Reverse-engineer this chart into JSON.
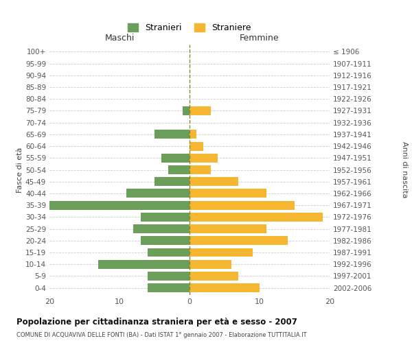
{
  "age_groups": [
    "0-4",
    "5-9",
    "10-14",
    "15-19",
    "20-24",
    "25-29",
    "30-34",
    "35-39",
    "40-44",
    "45-49",
    "50-54",
    "55-59",
    "60-64",
    "65-69",
    "70-74",
    "75-79",
    "80-84",
    "85-89",
    "90-94",
    "95-99",
    "100+"
  ],
  "birth_years": [
    "2002-2006",
    "1997-2001",
    "1992-1996",
    "1987-1991",
    "1982-1986",
    "1977-1981",
    "1972-1976",
    "1967-1971",
    "1962-1966",
    "1957-1961",
    "1952-1956",
    "1947-1951",
    "1942-1946",
    "1937-1941",
    "1932-1936",
    "1927-1931",
    "1922-1926",
    "1917-1921",
    "1912-1916",
    "1907-1911",
    "≤ 1906"
  ],
  "maschi": [
    6,
    6,
    13,
    6,
    7,
    8,
    7,
    20,
    9,
    5,
    3,
    4,
    0,
    5,
    0,
    1,
    0,
    0,
    0,
    0,
    0
  ],
  "femmine": [
    10,
    7,
    6,
    9,
    14,
    11,
    19,
    15,
    11,
    7,
    3,
    4,
    2,
    1,
    0,
    3,
    0,
    0,
    0,
    0,
    0
  ],
  "maschi_color": "#6a9e5a",
  "femmine_color": "#f5b731",
  "title": "Popolazione per cittadinanza straniera per età e sesso - 2007",
  "subtitle": "COMUNE DI ACQUAVIVA DELLE FONTI (BA) - Dati ISTAT 1° gennaio 2007 - Elaborazione TUTTITALIA.IT",
  "ylabel_left": "Fasce di età",
  "ylabel_right": "Anni di nascita",
  "xlabel_left": "Maschi",
  "xlabel_right": "Femmine",
  "legend_maschi": "Stranieri",
  "legend_femmine": "Straniere",
  "xlim": 20,
  "background_color": "#ffffff",
  "grid_color": "#cccccc",
  "bar_height": 0.75
}
